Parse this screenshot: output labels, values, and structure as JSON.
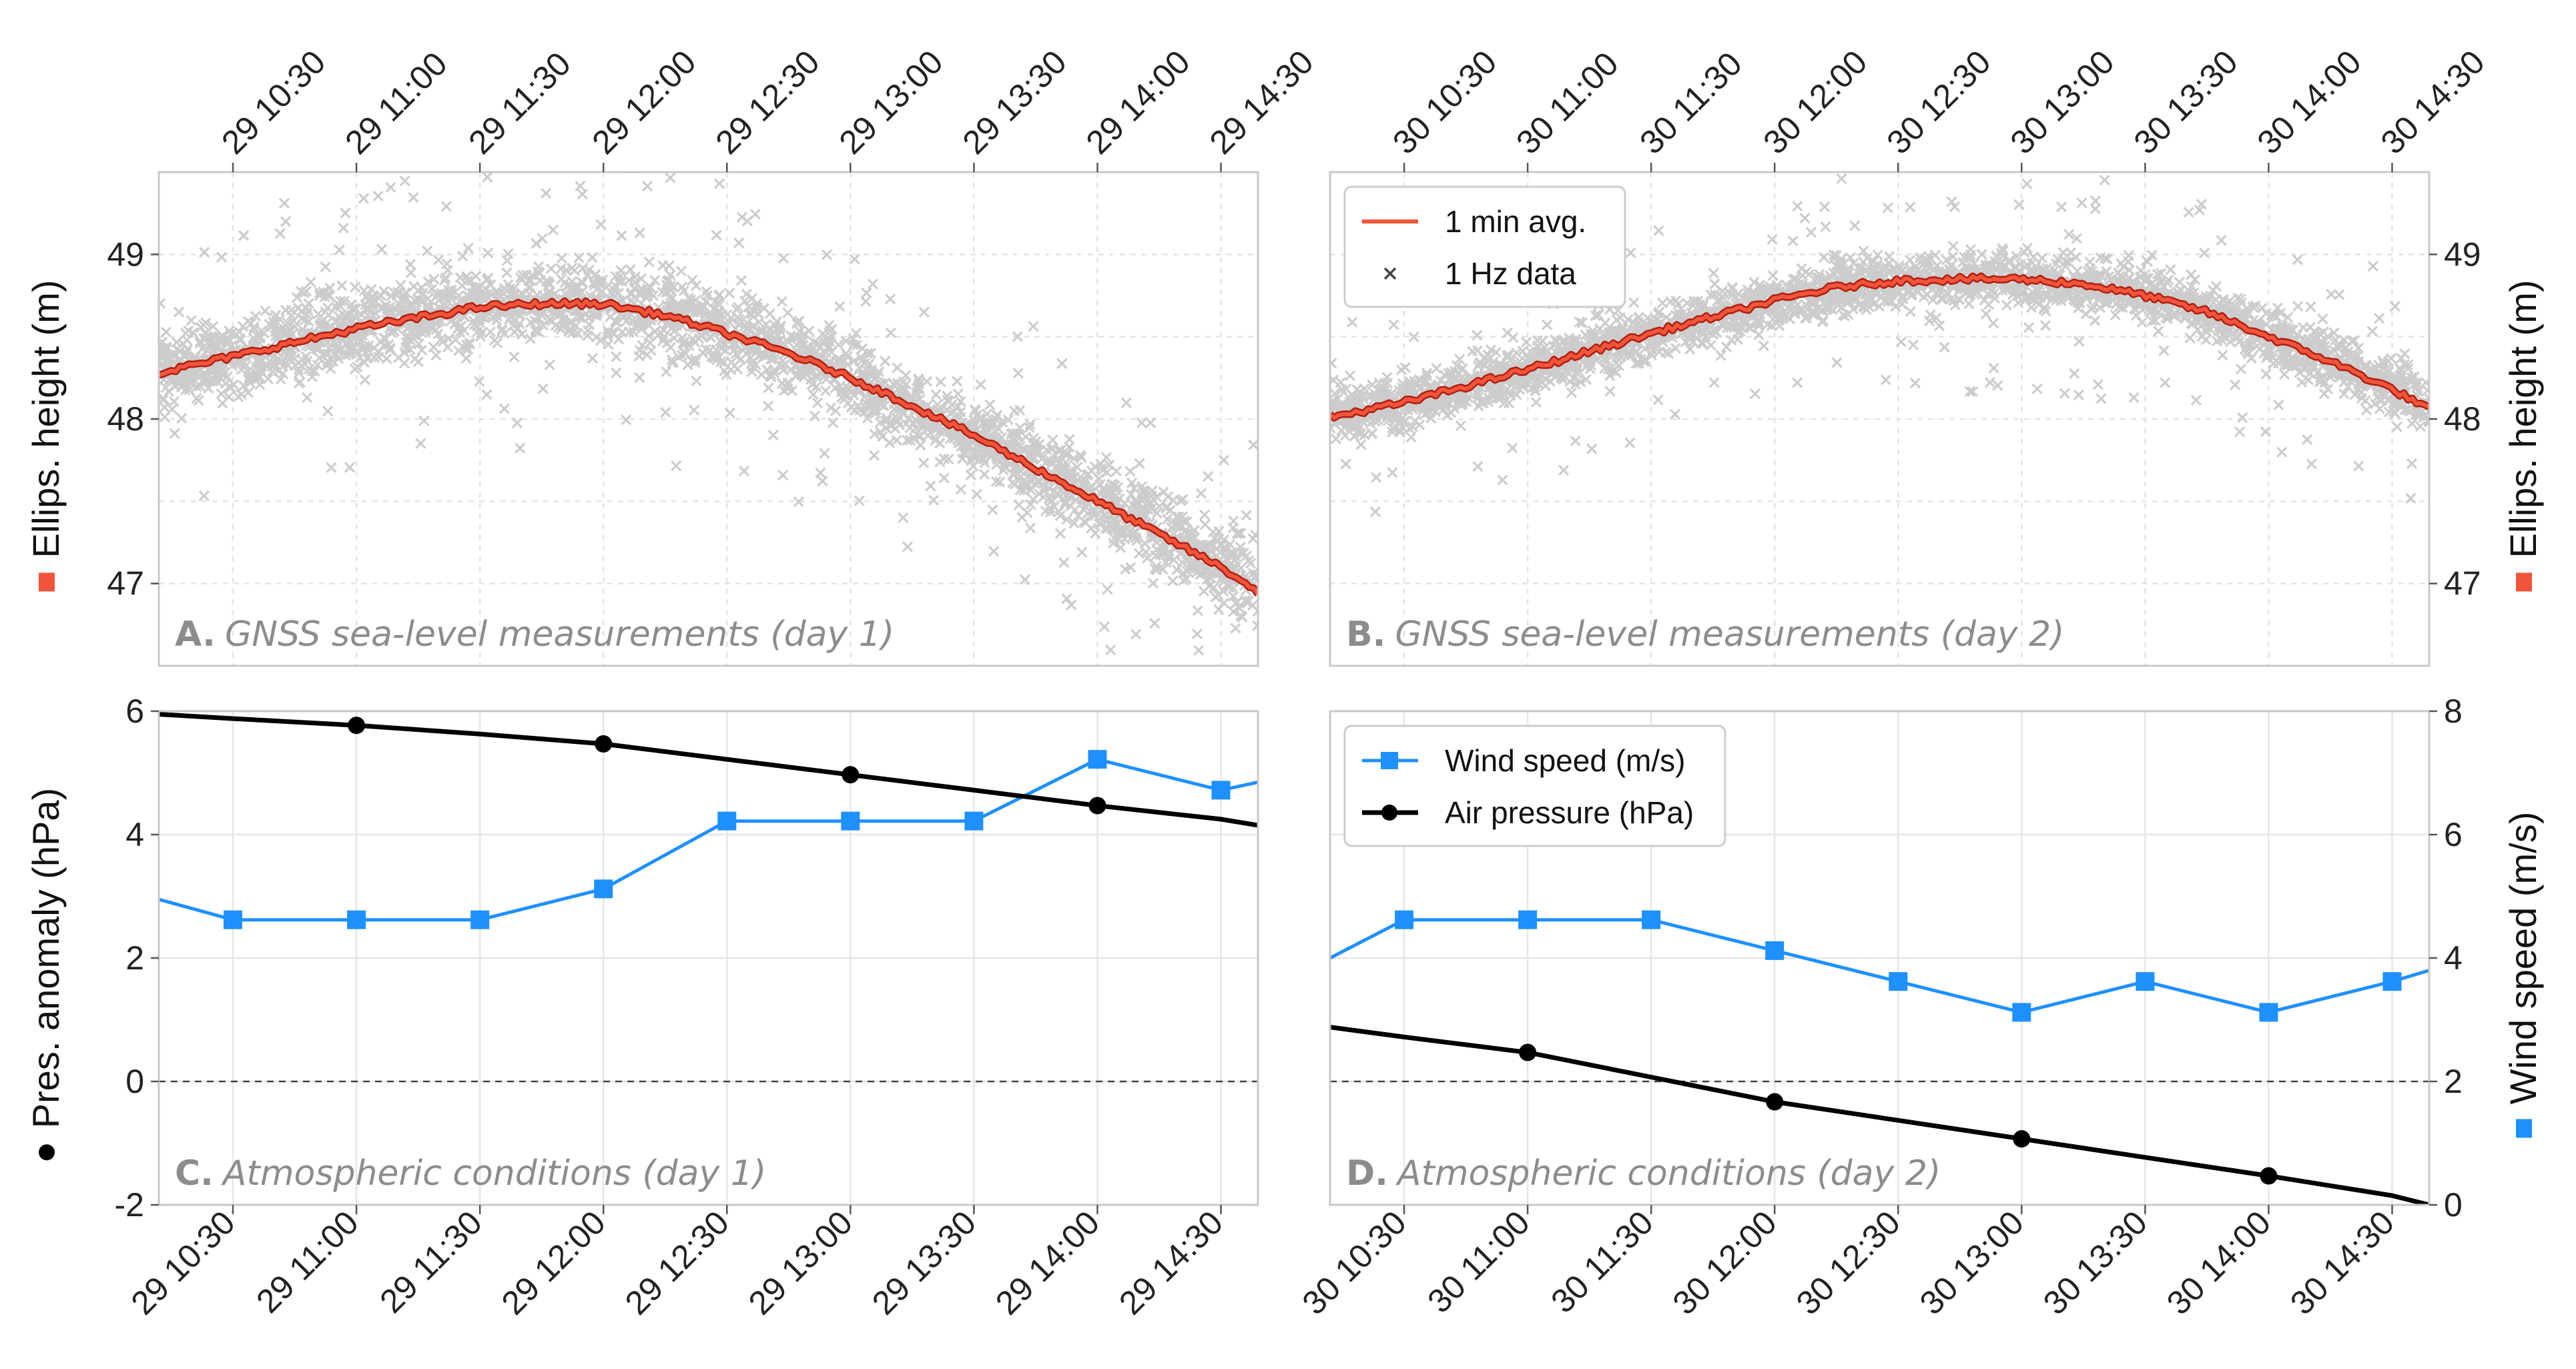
{
  "colors": {
    "avg_line": "#f0543a",
    "avg_outline": "#b01e10",
    "raw_points": "#cccccc",
    "wind": "#1e90ff",
    "pressure": "#000000"
  },
  "chart_data": [
    {
      "id": "A",
      "type": "scatter",
      "title_prefix": "A.",
      "title": "GNSS sea-level measurements (day 1)",
      "ylabel": "Ellips. height (m)",
      "ylabel_marker": "square",
      "ylim": [
        46.5,
        49.5
      ],
      "yticks": [
        47,
        48,
        49
      ],
      "xlim_hours": [
        10.2,
        14.65
      ],
      "xtick_hours": [
        10.5,
        11.0,
        11.5,
        12.0,
        12.5,
        13.0,
        13.5,
        14.0,
        14.5
      ],
      "xtick_labels": [
        "29 10:30",
        "29 11:00",
        "29 11:30",
        "29 12:00",
        "29 12:30",
        "29 13:00",
        "29 13:30",
        "29 14:00",
        "29 14:30"
      ],
      "series": [
        {
          "name": "1 min avg.",
          "type": "line",
          "x_hours": [
            10.2,
            10.5,
            11.0,
            11.5,
            11.75,
            12.0,
            12.25,
            12.5,
            12.75,
            13.0,
            13.25,
            13.5,
            13.75,
            14.0,
            14.25,
            14.5,
            14.65
          ],
          "y": [
            48.28,
            48.38,
            48.55,
            48.68,
            48.7,
            48.7,
            48.63,
            48.52,
            48.4,
            48.25,
            48.08,
            47.9,
            47.7,
            47.5,
            47.3,
            47.1,
            46.95
          ]
        },
        {
          "name": "1 Hz data",
          "type": "scatter",
          "spread_m": 0.12,
          "outlier_range_m": 0.9
        }
      ]
    },
    {
      "id": "B",
      "type": "scatter",
      "title_prefix": "B.",
      "title": "GNSS sea-level measurements (day 2)",
      "ylabel": "Ellips. height (m)",
      "ylabel_marker": "square",
      "ylim": [
        46.5,
        49.5
      ],
      "yticks": [
        47,
        48,
        49
      ],
      "xlim_hours": [
        10.2,
        14.65
      ],
      "xtick_hours": [
        10.5,
        11.0,
        11.5,
        12.0,
        12.5,
        13.0,
        13.5,
        14.0,
        14.5
      ],
      "xtick_labels": [
        "30 10:30",
        "30 11:00",
        "30 11:30",
        "30 12:00",
        "30 12:30",
        "30 13:00",
        "30 13:30",
        "30 14:00",
        "30 14:30"
      ],
      "legend": [
        "1 min avg.",
        "1 Hz data"
      ],
      "series": [
        {
          "name": "1 min avg.",
          "type": "line",
          "x_hours": [
            10.2,
            10.5,
            11.0,
            11.5,
            12.0,
            12.25,
            12.5,
            12.75,
            13.0,
            13.25,
            13.5,
            13.75,
            14.0,
            14.25,
            14.5,
            14.65
          ],
          "y": [
            48.01,
            48.1,
            48.3,
            48.52,
            48.72,
            48.8,
            48.84,
            48.85,
            48.85,
            48.82,
            48.75,
            48.65,
            48.5,
            48.35,
            48.18,
            48.06
          ]
        },
        {
          "name": "1 Hz data",
          "type": "scatter",
          "spread_m": 0.08,
          "outlier_range_m": 0.7
        }
      ]
    },
    {
      "id": "C",
      "type": "line",
      "title_prefix": "C.",
      "title": "Atmospheric conditions (day 1)",
      "ylabel": "Pres. anomaly (hPa)",
      "ylabel_marker": "circle",
      "ylim": [
        -2,
        6
      ],
      "yticks": [
        -2,
        0,
        2,
        4,
        6
      ],
      "y2lim": [
        0,
        8
      ],
      "xlim_hours": [
        10.2,
        14.65
      ],
      "xtick_hours": [
        10.5,
        11.0,
        11.5,
        12.0,
        12.5,
        13.0,
        13.5,
        14.0,
        14.5
      ],
      "xtick_labels": [
        "29 10:30",
        "29 11:00",
        "29 11:30",
        "29 12:00",
        "29 12:30",
        "29 13:00",
        "29 13:30",
        "29 14:00",
        "29 14:30"
      ],
      "series": [
        {
          "name": "Wind speed (m/s)",
          "axis": "right",
          "marker": "square",
          "x_hours": [
            10.2,
            10.5,
            11.0,
            11.5,
            12.0,
            12.5,
            13.0,
            13.5,
            14.0,
            14.5,
            14.65
          ],
          "y": [
            4.95,
            4.62,
            4.62,
            4.62,
            5.12,
            6.22,
            6.22,
            6.22,
            7.22,
            6.72,
            6.85
          ],
          "marker_points": [
            1,
            2,
            3,
            4,
            5,
            6,
            7,
            8,
            9
          ]
        },
        {
          "name": "Air pressure (hPa)",
          "axis": "left",
          "marker": "circle",
          "x_hours": [
            10.2,
            10.5,
            11.0,
            11.5,
            12.0,
            12.5,
            13.0,
            13.5,
            14.0,
            14.5,
            14.65
          ],
          "y": [
            5.95,
            5.88,
            5.77,
            5.63,
            5.47,
            5.22,
            4.97,
            4.72,
            4.47,
            4.25,
            4.15
          ],
          "marker_points": [
            2,
            4,
            6,
            8
          ]
        }
      ]
    },
    {
      "id": "D",
      "type": "line",
      "title_prefix": "D.",
      "title": "Atmospheric conditions (day 2)",
      "ylabel": "Wind speed (m/s)",
      "ylabel_marker": "square",
      "ylim": [
        -2,
        6
      ],
      "y2lim": [
        0,
        8
      ],
      "y2ticks": [
        0,
        2,
        4,
        6,
        8
      ],
      "xlim_hours": [
        10.2,
        14.65
      ],
      "xtick_hours": [
        10.5,
        11.0,
        11.5,
        12.0,
        12.5,
        13.0,
        13.5,
        14.0,
        14.5
      ],
      "xtick_labels": [
        "30 10:30",
        "30 11:00",
        "30 11:30",
        "30 12:00",
        "30 12:30",
        "30 13:00",
        "30 13:30",
        "30 14:00",
        "30 14:30"
      ],
      "legend": [
        "Wind speed (m/s)",
        "Air pressure (hPa)"
      ],
      "series": [
        {
          "name": "Wind speed (m/s)",
          "axis": "right",
          "marker": "square",
          "x_hours": [
            10.2,
            10.5,
            11.0,
            11.5,
            12.0,
            12.5,
            13.0,
            13.5,
            14.0,
            14.5,
            14.65
          ],
          "y": [
            4.0,
            4.62,
            4.62,
            4.62,
            4.12,
            3.62,
            3.12,
            3.62,
            3.12,
            3.62,
            3.8
          ],
          "marker_points": [
            1,
            2,
            3,
            4,
            5,
            6,
            7,
            8,
            9
          ]
        },
        {
          "name": "Air pressure (hPa)",
          "axis": "left",
          "marker": "circle",
          "x_hours": [
            10.2,
            10.5,
            11.0,
            11.5,
            12.0,
            12.5,
            13.0,
            13.5,
            14.0,
            14.5,
            14.65
          ],
          "y": [
            0.88,
            0.72,
            0.47,
            0.07,
            -0.33,
            -0.63,
            -0.93,
            -1.23,
            -1.53,
            -1.85,
            -2.0
          ],
          "marker_points": [
            2,
            4,
            6,
            8
          ]
        }
      ]
    }
  ]
}
